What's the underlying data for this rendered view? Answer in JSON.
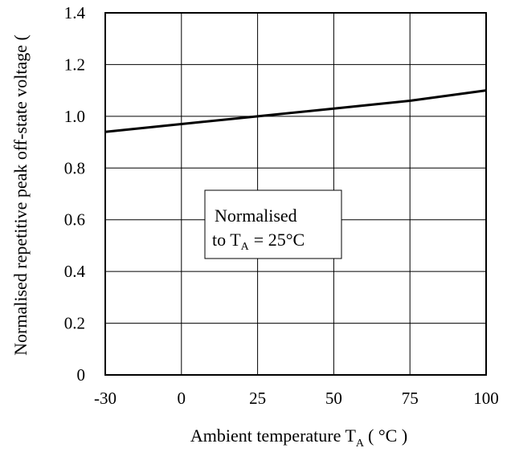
{
  "chart_data": {
    "type": "line",
    "title": "",
    "xlabel": "Ambient temperature T",
    "xlabel_sub": "A",
    "xlabel_unit": "( °C )",
    "ylabel": "Normalised repetitive peak off-state voltage (",
    "x_ticks": [
      "-30",
      "0",
      "25",
      "50",
      "75",
      "100"
    ],
    "y_ticks": [
      "0",
      "0.2",
      "0.4",
      "0.6",
      "0.8",
      "1.0",
      "1.2",
      "1.4"
    ],
    "x_tick_values": [
      -30,
      0,
      25,
      50,
      75,
      100
    ],
    "y_tick_values": [
      0,
      0.2,
      0.4,
      0.6,
      0.8,
      1.0,
      1.2,
      1.4
    ],
    "grid": true,
    "series": [
      {
        "x": [
          -30,
          0,
          25,
          50,
          75,
          100
        ],
        "y": [
          0.94,
          0.97,
          1.0,
          1.03,
          1.06,
          1.1
        ]
      }
    ],
    "annotation": {
      "line1": "Normalised",
      "line2_prefix": "to T",
      "line2_sub": "A",
      "line2_suffix": "= 25°C"
    }
  }
}
